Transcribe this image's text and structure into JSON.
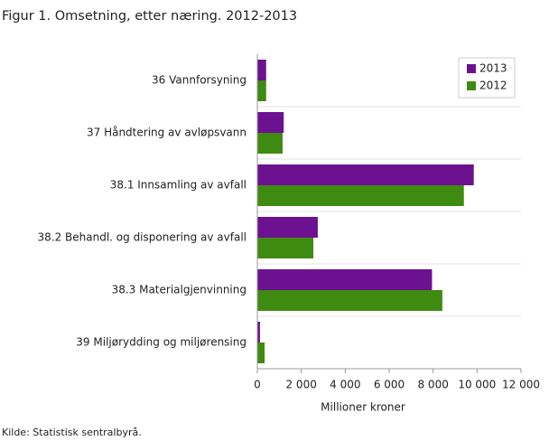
{
  "chart_data": {
    "type": "hbar",
    "title": "Figur 1. Omsetning, etter næring. 2012-2013",
    "categories": [
      "36 Vannforsyning",
      "37 Håndtering av avløpsvann",
      "38.1 Innsamling av avfall",
      "38.2 Behandl. og disponering av avfall",
      "38.3 Materialgjenvinning",
      "39 Miljørydding og miljørensing"
    ],
    "series": [
      {
        "name": "2013",
        "color": "#6c1190",
        "values": [
          400,
          1200,
          9850,
          2750,
          7950,
          120
        ]
      },
      {
        "name": "2012",
        "color": "#3f8a10",
        "values": [
          400,
          1150,
          9400,
          2550,
          8420,
          330
        ]
      }
    ],
    "xlim": [
      0,
      12000
    ],
    "xticks": [
      0,
      {
        "value": 2000,
        "label": "2 000"
      },
      {
        "value": 4000,
        "label": "4 000"
      },
      {
        "value": 6000,
        "label": "6 000"
      },
      {
        "value": 8000,
        "label": "8 000"
      },
      {
        "value": 10000,
        "label": "10 000"
      },
      {
        "value": 12000,
        "label": "12 000"
      }
    ],
    "xlabel": "Millioner  kroner",
    "legend": "upper right",
    "source": "Kilde: Statistisk sentralbyrå."
  }
}
